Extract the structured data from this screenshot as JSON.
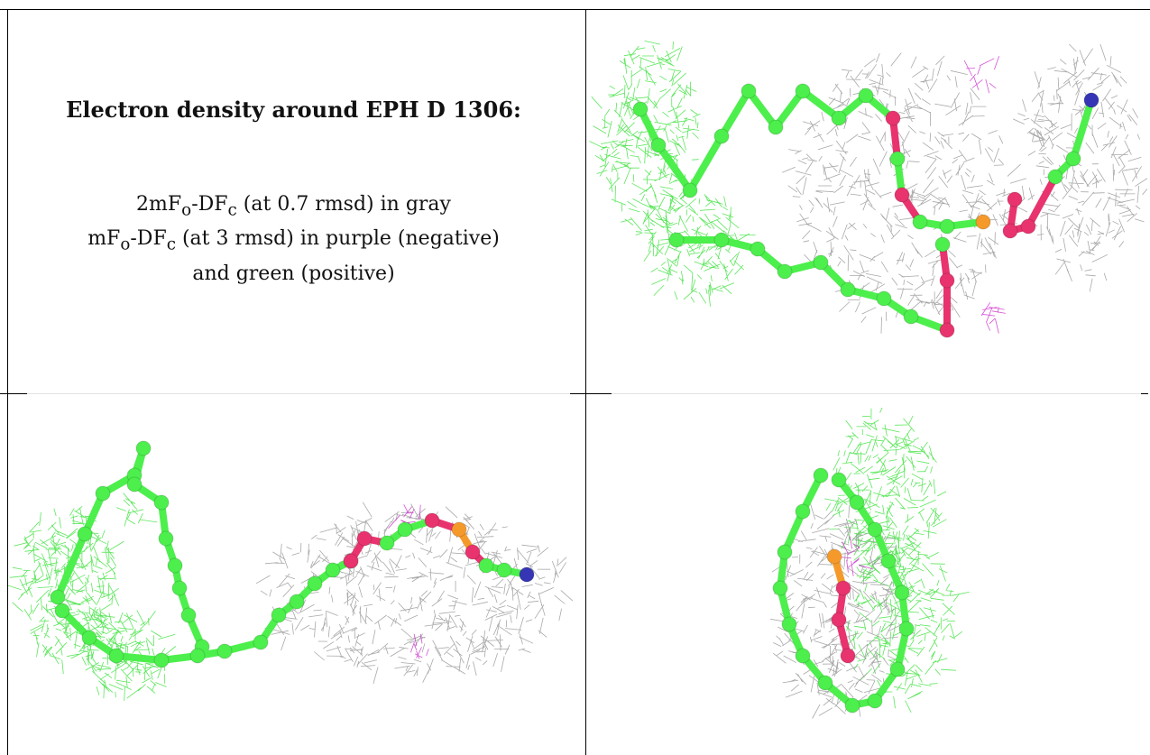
{
  "caption": {
    "title": "Electron density around EPH D 1306:",
    "line1_a": "2mF",
    "line1_o": "o",
    "line1_b": "-DF",
    "line1_c": "c",
    "line1_rest": " (at 0.7 rmsd) in gray",
    "line2_a": "mF",
    "line2_o": "o",
    "line2_b": "-DF",
    "line2_c": "c",
    "line2_rest": " (at 3 rmsd) in purple (negative)",
    "line3": "and green (positive)"
  },
  "colors": {
    "carbon": "#4cef4c",
    "oxygen": "#e8336e",
    "phosphorus": "#f59a2a",
    "nitrogen": "#3535b5",
    "mesh_gray": "#9a9a9a",
    "mesh_green": "#3fe23f",
    "mesh_purple": "#cc33cc"
  },
  "panels": [
    {
      "name": "view-top-right",
      "kind": "molecule-render"
    },
    {
      "name": "view-bottom-left",
      "kind": "molecule-render"
    },
    {
      "name": "view-bottom-right",
      "kind": "molecule-render"
    }
  ]
}
